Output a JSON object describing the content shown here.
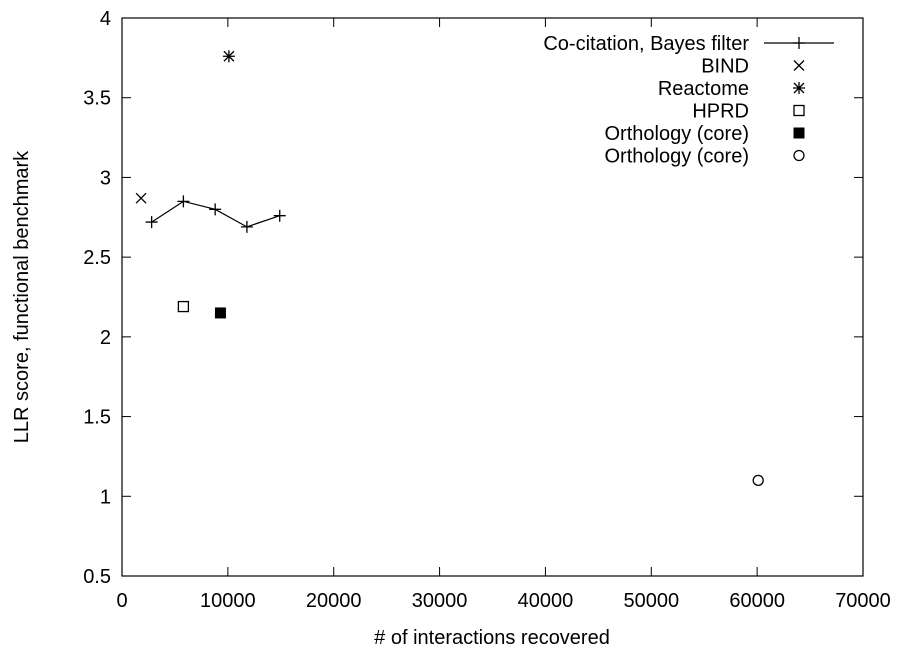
{
  "chart_data": {
    "type": "scatter",
    "title": "",
    "xlabel": "# of interactions recovered",
    "ylabel": "LLR score, functional benchmark",
    "xlim": [
      0,
      70000
    ],
    "ylim": [
      0.5,
      4
    ],
    "xticks": [
      0,
      10000,
      20000,
      30000,
      40000,
      50000,
      60000,
      70000
    ],
    "yticks": [
      0.5,
      1,
      1.5,
      2,
      2.5,
      3,
      3.5,
      4
    ],
    "xtick_labels": [
      "0",
      "10000",
      "20000",
      "30000",
      "40000",
      "50000",
      "60000",
      "70000"
    ],
    "ytick_labels": [
      "0.5",
      "1",
      "1.5",
      "2",
      "2.5",
      "3",
      "3.5",
      "4"
    ],
    "grid": false,
    "legend_position": "top-right",
    "series": [
      {
        "name": "Co-citation, Bayes filter",
        "style": "linespoints",
        "marker": "plus",
        "points": [
          [
            2800,
            2.72
          ],
          [
            5800,
            2.85
          ],
          [
            8800,
            2.8
          ],
          [
            11800,
            2.69
          ],
          [
            14900,
            2.76
          ]
        ]
      },
      {
        "name": "BIND",
        "style": "points",
        "marker": "cross",
        "points": [
          [
            1800,
            2.87
          ]
        ]
      },
      {
        "name": "Reactome",
        "style": "points",
        "marker": "star",
        "points": [
          [
            10100,
            3.76
          ]
        ]
      },
      {
        "name": "HPRD",
        "style": "points",
        "marker": "open-square",
        "points": [
          [
            5800,
            2.19
          ]
        ]
      },
      {
        "name": "Orthology (core)",
        "style": "points",
        "marker": "filled-square",
        "points": [
          [
            9300,
            2.15
          ]
        ]
      },
      {
        "name": "Orthology (core)",
        "style": "points",
        "marker": "open-circle",
        "points": [
          [
            60100,
            1.1
          ]
        ]
      }
    ]
  }
}
